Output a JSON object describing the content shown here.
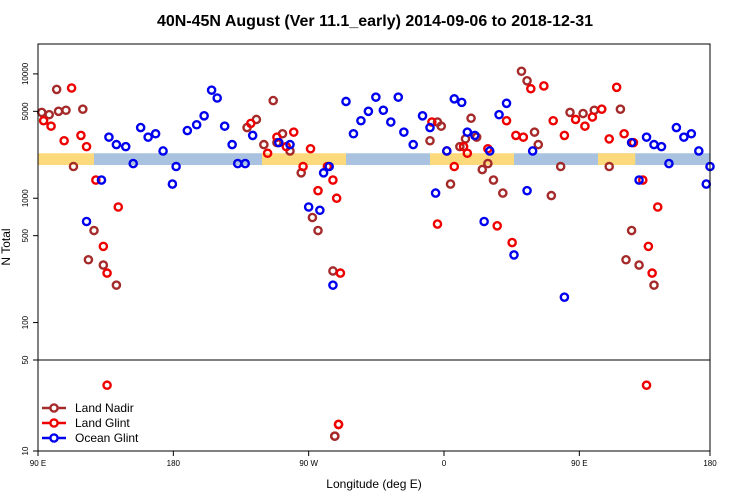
{
  "chart_data": {
    "type": "scatter",
    "title": "40N-45N August (Ver 11.1_early)   2014-09-06 to 2018-12-31",
    "xlabel": "Longitude (deg E)",
    "ylabel": "N Total",
    "y_scale": "log",
    "xlim": [
      0,
      360
    ],
    "ylim_upper": [
      50,
      15000
    ],
    "ylim_lower": [
      10,
      50
    ],
    "x_ticks": [
      {
        "x": 0,
        "label": "90 E"
      },
      {
        "x": 72.5,
        "label": "180"
      },
      {
        "x": 145,
        "label": "90 W"
      },
      {
        "x": 217.5,
        "label": "0"
      },
      {
        "x": 290,
        "label": "90 E"
      },
      {
        "x": 360,
        "label": "180"
      }
    ],
    "y_ticks_upper": [
      {
        "v": 10000,
        "label": "10000"
      },
      {
        "v": 5000,
        "label": "5000"
      },
      {
        "v": 1000,
        "label": "1000"
      },
      {
        "v": 500,
        "label": "500"
      },
      {
        "v": 100,
        "label": "100"
      }
    ],
    "y_ticks_lower": [
      {
        "v": 50,
        "label": "50"
      },
      {
        "v": 10,
        "label": "10"
      }
    ],
    "band": {
      "y_low": 1850,
      "y_high": 2300,
      "segments": [
        {
          "x0": 0,
          "x1": 30,
          "color": "#fcd97a"
        },
        {
          "x0": 30,
          "x1": 120,
          "color": "#a8c2e0"
        },
        {
          "x0": 120,
          "x1": 165,
          "color": "#fcd97a"
        },
        {
          "x0": 165,
          "x1": 210,
          "color": "#a8c2e0"
        },
        {
          "x0": 210,
          "x1": 255,
          "color": "#fcd97a"
        },
        {
          "x0": 255,
          "x1": 320,
          "color": "#a8c2e0"
        },
        {
          "x0": 300,
          "x1": 320,
          "color": "#fcd97a"
        },
        {
          "x0": 320,
          "x1": 360,
          "color": "#a8c2e0"
        }
      ]
    },
    "series": [
      {
        "name": "Land Nadir",
        "color": "#a52a2a",
        "points": [
          [
            2,
            4900
          ],
          [
            6,
            4700
          ],
          [
            10,
            7500
          ],
          [
            11,
            5000
          ],
          [
            15,
            5100
          ],
          [
            19,
            1800
          ],
          [
            24,
            5200
          ],
          [
            27,
            320
          ],
          [
            30,
            550
          ],
          [
            35,
            290
          ],
          [
            42,
            200
          ],
          [
            112,
            3700
          ],
          [
            117,
            4300
          ],
          [
            121,
            2700
          ],
          [
            126,
            6100
          ],
          [
            128,
            2800
          ],
          [
            131,
            3300
          ],
          [
            135,
            2400
          ],
          [
            141,
            1600
          ],
          [
            147,
            700
          ],
          [
            150,
            550
          ],
          [
            158,
            260
          ],
          [
            210,
            2900
          ],
          [
            214,
            4100
          ],
          [
            216,
            3800
          ],
          [
            221,
            1300
          ],
          [
            226,
            2600
          ],
          [
            229,
            3000
          ],
          [
            232,
            4400
          ],
          [
            235,
            3100
          ],
          [
            238,
            1700
          ],
          [
            241,
            1900
          ],
          [
            244,
            1400
          ],
          [
            249,
            1100
          ],
          [
            259,
            10500
          ],
          [
            262,
            8800
          ],
          [
            266,
            3400
          ],
          [
            268,
            2700
          ],
          [
            275,
            1050
          ],
          [
            280,
            1800
          ],
          [
            285,
            4900
          ],
          [
            292,
            4800
          ],
          [
            298,
            5100
          ],
          [
            306,
            1800
          ],
          [
            312,
            5200
          ],
          [
            315,
            320
          ],
          [
            318,
            550
          ],
          [
            322,
            290
          ],
          [
            330,
            200
          ],
          [
            159,
            13
          ]
        ]
      },
      {
        "name": "Land Glint",
        "color": "#ee0000",
        "points": [
          [
            3,
            4200
          ],
          [
            7,
            3800
          ],
          [
            14,
            2900
          ],
          [
            18,
            7700
          ],
          [
            23,
            3200
          ],
          [
            26,
            2600
          ],
          [
            31,
            1400
          ],
          [
            35,
            410
          ],
          [
            37,
            250
          ],
          [
            43,
            850
          ],
          [
            114,
            4000
          ],
          [
            123,
            2300
          ],
          [
            128,
            3100
          ],
          [
            133,
            2600
          ],
          [
            137,
            3400
          ],
          [
            142,
            1800
          ],
          [
            146,
            2500
          ],
          [
            150,
            1150
          ],
          [
            155,
            1800
          ],
          [
            158,
            1400
          ],
          [
            160,
            1000
          ],
          [
            162,
            250
          ],
          [
            211,
            4100
          ],
          [
            214,
            620
          ],
          [
            219,
            2400
          ],
          [
            223,
            1800
          ],
          [
            228,
            2600
          ],
          [
            230,
            2300
          ],
          [
            241,
            2500
          ],
          [
            246,
            600
          ],
          [
            251,
            4200
          ],
          [
            254,
            440
          ],
          [
            256,
            3200
          ],
          [
            260,
            3100
          ],
          [
            264,
            7600
          ],
          [
            271,
            8000
          ],
          [
            276,
            4200
          ],
          [
            282,
            3200
          ],
          [
            288,
            4300
          ],
          [
            293,
            3800
          ],
          [
            297,
            4500
          ],
          [
            302,
            5200
          ],
          [
            306,
            3000
          ],
          [
            310,
            7800
          ],
          [
            314,
            3300
          ],
          [
            319,
            2800
          ],
          [
            324,
            1400
          ],
          [
            327,
            410
          ],
          [
            329,
            250
          ],
          [
            332,
            850
          ],
          [
            161,
            16
          ]
        ]
      },
      {
        "name": "Ocean Glint",
        "color": "#0000ee",
        "points": [
          [
            26,
            650
          ],
          [
            34,
            1400
          ],
          [
            38,
            3100
          ],
          [
            42,
            2700
          ],
          [
            47,
            2600
          ],
          [
            51,
            1900
          ],
          [
            55,
            3700
          ],
          [
            59,
            3100
          ],
          [
            63,
            3300
          ],
          [
            67,
            2400
          ],
          [
            72,
            1300
          ],
          [
            74,
            1800
          ],
          [
            80,
            3500
          ],
          [
            85,
            3900
          ],
          [
            89,
            4600
          ],
          [
            93,
            7400
          ],
          [
            96,
            6400
          ],
          [
            100,
            3800
          ],
          [
            104,
            2700
          ],
          [
            107,
            1900
          ],
          [
            111,
            1900
          ],
          [
            115,
            3200
          ],
          [
            129,
            2800
          ],
          [
            135,
            2700
          ],
          [
            145,
            850
          ],
          [
            151,
            800
          ],
          [
            153,
            1600
          ],
          [
            156,
            1800
          ],
          [
            158,
            200
          ],
          [
            165,
            6000
          ],
          [
            169,
            3300
          ],
          [
            173,
            4200
          ],
          [
            177,
            5000
          ],
          [
            181,
            6500
          ],
          [
            185,
            5100
          ],
          [
            189,
            4100
          ],
          [
            193,
            6500
          ],
          [
            196,
            3400
          ],
          [
            201,
            2700
          ],
          [
            206,
            4600
          ],
          [
            210,
            3700
          ],
          [
            213,
            1100
          ],
          [
            219,
            2400
          ],
          [
            223,
            6300
          ],
          [
            227,
            5900
          ],
          [
            230,
            3400
          ],
          [
            234,
            3200
          ],
          [
            239,
            650
          ],
          [
            242,
            2400
          ],
          [
            247,
            4700
          ],
          [
            251,
            5800
          ],
          [
            255,
            350
          ],
          [
            262,
            1150
          ],
          [
            265,
            2400
          ],
          [
            282,
            160
          ],
          [
            318,
            2800
          ],
          [
            322,
            1400
          ],
          [
            326,
            3100
          ],
          [
            330,
            2700
          ],
          [
            334,
            2600
          ],
          [
            338,
            1900
          ],
          [
            342,
            3700
          ],
          [
            346,
            3100
          ],
          [
            350,
            3300
          ],
          [
            354,
            2400
          ],
          [
            358,
            1300
          ],
          [
            360,
            1800
          ]
        ]
      }
    ],
    "lower_points": [
      {
        "series": "Land Nadir",
        "x": 159,
        "v": 13
      },
      {
        "series": "Land Glint",
        "x": 37,
        "v": 32
      },
      {
        "series": "Land Glint",
        "x": 161,
        "v": 16
      },
      {
        "series": "Land Glint",
        "x": 326,
        "v": 32
      }
    ],
    "legend": {
      "placement": "bottom-left",
      "entries": [
        {
          "name": "Land Nadir",
          "color": "#a52a2a"
        },
        {
          "name": "Land Glint",
          "color": "#ee0000"
        },
        {
          "name": "Ocean Glint",
          "color": "#0000ee"
        }
      ]
    }
  }
}
